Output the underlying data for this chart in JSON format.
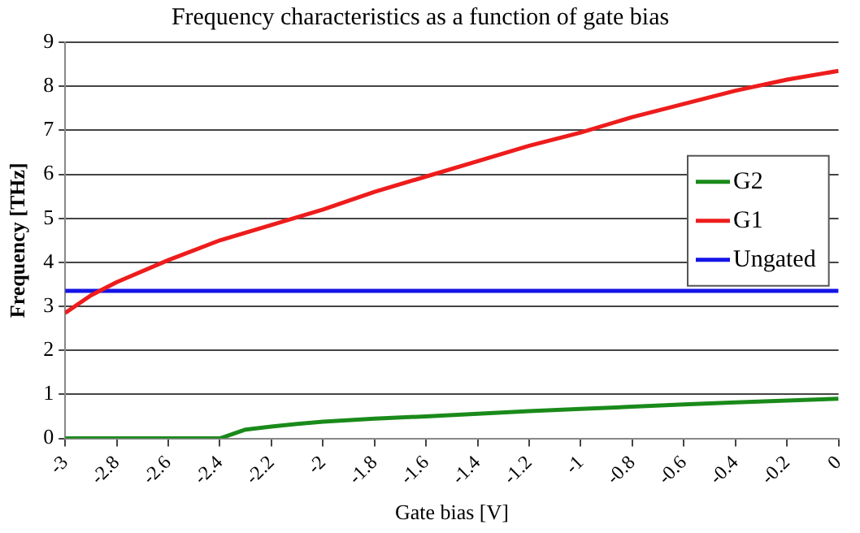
{
  "chart_data": {
    "type": "line",
    "title": "Frequency characteristics as a function of gate bias",
    "xlabel": "Gate bias [V]",
    "ylabel": "Frequency [THz]",
    "xlim": [
      -3,
      0
    ],
    "xticks": [
      -3,
      -2.8,
      -2.6,
      -2.4,
      -2.2,
      -2,
      -1.8,
      -1.6,
      -1.4,
      -1.2,
      -1,
      -0.8,
      -0.6,
      -0.4,
      -0.2,
      0
    ],
    "ylim": [
      0,
      9
    ],
    "yticks": [
      0,
      1,
      2,
      3,
      4,
      5,
      6,
      7,
      8,
      9
    ],
    "grid": "y",
    "legend": "right",
    "marker": "none",
    "line_style": "solid",
    "series": [
      {
        "name": "G2",
        "color": "#1a8a1a",
        "x": [
          -3,
          -2.4,
          -2.35,
          -2.3,
          -2.2,
          -2.1,
          -2,
          -1.8,
          -1.6,
          -1.4,
          -1.2,
          -1,
          -0.8,
          -0.6,
          -0.4,
          -0.2,
          0
        ],
        "values": [
          0,
          0,
          0.1,
          0.2,
          0.27,
          0.33,
          0.38,
          0.45,
          0.5,
          0.56,
          0.62,
          0.67,
          0.72,
          0.77,
          0.82,
          0.86,
          0.9
        ]
      },
      {
        "name": "G1",
        "color": "#ee1c1c",
        "x": [
          -3,
          -2.9,
          -2.8,
          -2.6,
          -2.4,
          -2.2,
          -2,
          -1.8,
          -1.6,
          -1.4,
          -1.2,
          -1,
          -0.8,
          -0.6,
          -0.4,
          -0.2,
          0
        ],
        "values": [
          2.85,
          3.25,
          3.55,
          4.05,
          4.5,
          4.85,
          5.2,
          5.6,
          5.95,
          6.3,
          6.65,
          6.95,
          7.3,
          7.6,
          7.9,
          8.15,
          8.35
        ]
      },
      {
        "name": "Ungated",
        "color": "#1414e6",
        "x": [
          -3,
          0
        ],
        "values": [
          3.35,
          3.35
        ]
      }
    ]
  }
}
